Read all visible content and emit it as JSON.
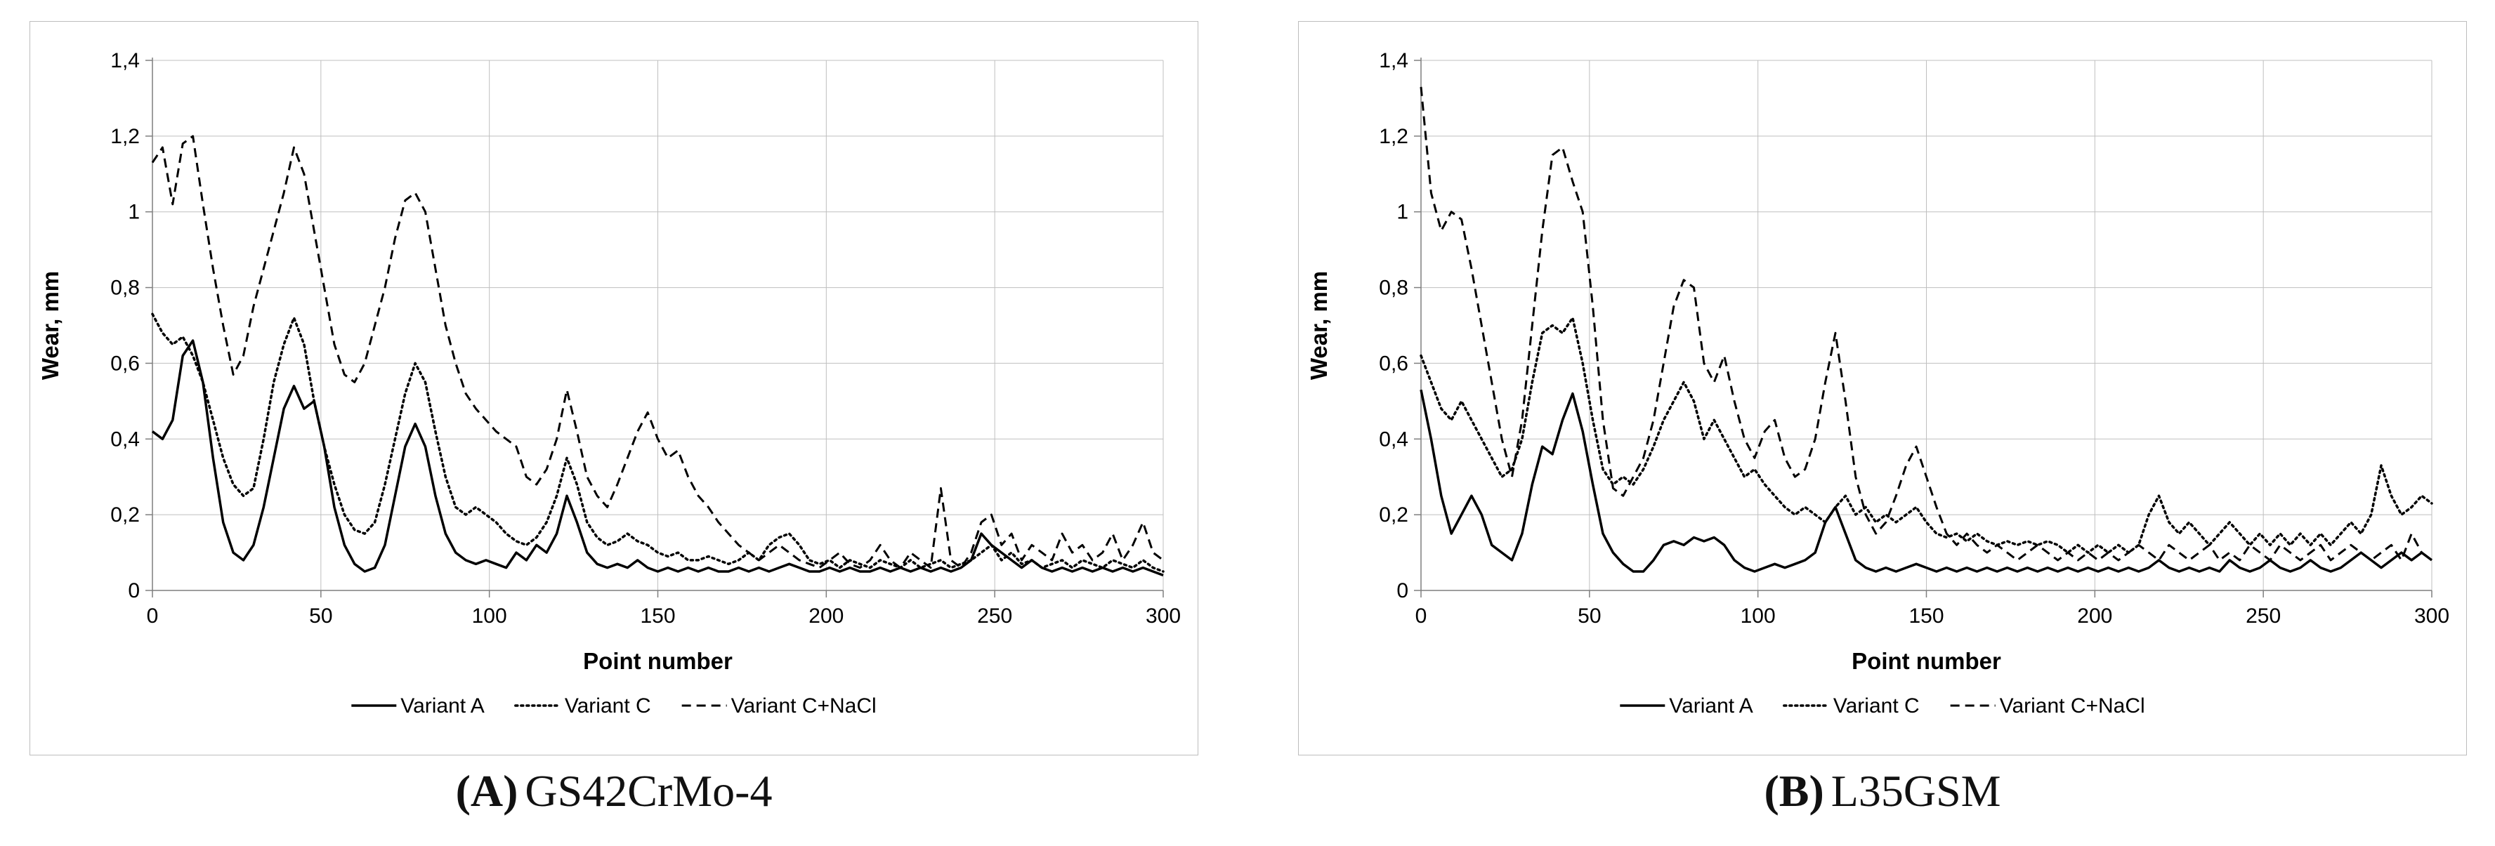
{
  "figure": {
    "captions": [
      {
        "marker": "(A)",
        "label": "GS42CrMo-4"
      },
      {
        "marker": "(B)",
        "label": "L35GSM"
      }
    ]
  },
  "chart_data": [
    {
      "type": "line",
      "title": "",
      "xlabel": "Point number",
      "ylabel": "Wear, mm",
      "xlim": [
        0,
        300
      ],
      "ylim": [
        0,
        1.4
      ],
      "xticks": [
        0,
        50,
        100,
        150,
        200,
        250,
        300
      ],
      "yticks": [
        0,
        0.2,
        0.4,
        0.6,
        0.8,
        1,
        1.2,
        1.4
      ],
      "ytick_labels": [
        "0",
        "0,2",
        "0,4",
        "0,6",
        "0,8",
        "1",
        "1,2",
        "1,4"
      ],
      "grid": true,
      "grid_color": "#bfbfbf",
      "axis_color": "#7f7f7f",
      "legend_position": "bottom",
      "x": [
        0,
        3,
        6,
        9,
        12,
        15,
        18,
        21,
        24,
        27,
        30,
        33,
        36,
        39,
        42,
        45,
        48,
        51,
        54,
        57,
        60,
        63,
        66,
        69,
        72,
        75,
        78,
        81,
        84,
        87,
        90,
        93,
        96,
        99,
        102,
        105,
        108,
        111,
        114,
        117,
        120,
        123,
        126,
        129,
        132,
        135,
        138,
        141,
        144,
        147,
        150,
        153,
        156,
        159,
        162,
        165,
        168,
        171,
        174,
        177,
        180,
        183,
        186,
        189,
        192,
        195,
        198,
        201,
        204,
        207,
        210,
        213,
        216,
        219,
        222,
        225,
        228,
        231,
        234,
        237,
        240,
        243,
        246,
        249,
        252,
        255,
        258,
        261,
        264,
        267,
        270,
        273,
        276,
        279,
        282,
        285,
        288,
        291,
        294,
        297,
        300
      ],
      "series": [
        {
          "name": "Variant A",
          "style": "solid",
          "color": "#000000",
          "values": [
            0.42,
            0.4,
            0.45,
            0.62,
            0.66,
            0.55,
            0.35,
            0.18,
            0.1,
            0.08,
            0.12,
            0.22,
            0.35,
            0.48,
            0.54,
            0.48,
            0.5,
            0.38,
            0.22,
            0.12,
            0.07,
            0.05,
            0.06,
            0.12,
            0.25,
            0.38,
            0.44,
            0.38,
            0.25,
            0.15,
            0.1,
            0.08,
            0.07,
            0.08,
            0.07,
            0.06,
            0.1,
            0.08,
            0.12,
            0.1,
            0.15,
            0.25,
            0.18,
            0.1,
            0.07,
            0.06,
            0.07,
            0.06,
            0.08,
            0.06,
            0.05,
            0.06,
            0.05,
            0.06,
            0.05,
            0.06,
            0.05,
            0.05,
            0.06,
            0.05,
            0.06,
            0.05,
            0.06,
            0.07,
            0.06,
            0.05,
            0.05,
            0.06,
            0.05,
            0.06,
            0.05,
            0.05,
            0.06,
            0.05,
            0.06,
            0.05,
            0.06,
            0.05,
            0.06,
            0.05,
            0.06,
            0.08,
            0.15,
            0.12,
            0.1,
            0.08,
            0.06,
            0.08,
            0.06,
            0.05,
            0.06,
            0.05,
            0.06,
            0.05,
            0.06,
            0.05,
            0.06,
            0.05,
            0.06,
            0.05,
            0.04
          ]
        },
        {
          "name": "Variant C",
          "style": "dotted",
          "color": "#000000",
          "values": [
            0.73,
            0.68,
            0.65,
            0.67,
            0.62,
            0.55,
            0.45,
            0.35,
            0.28,
            0.25,
            0.27,
            0.4,
            0.55,
            0.65,
            0.72,
            0.65,
            0.5,
            0.38,
            0.28,
            0.2,
            0.16,
            0.15,
            0.18,
            0.28,
            0.4,
            0.52,
            0.6,
            0.55,
            0.42,
            0.3,
            0.22,
            0.2,
            0.22,
            0.2,
            0.18,
            0.15,
            0.13,
            0.12,
            0.14,
            0.18,
            0.25,
            0.35,
            0.28,
            0.18,
            0.14,
            0.12,
            0.13,
            0.15,
            0.13,
            0.12,
            0.1,
            0.09,
            0.1,
            0.08,
            0.08,
            0.09,
            0.08,
            0.07,
            0.08,
            0.1,
            0.08,
            0.12,
            0.14,
            0.15,
            0.12,
            0.08,
            0.07,
            0.08,
            0.06,
            0.08,
            0.07,
            0.06,
            0.08,
            0.07,
            0.06,
            0.08,
            0.06,
            0.07,
            0.08,
            0.06,
            0.07,
            0.08,
            0.1,
            0.12,
            0.08,
            0.1,
            0.07,
            0.08,
            0.06,
            0.07,
            0.08,
            0.06,
            0.08,
            0.07,
            0.06,
            0.08,
            0.07,
            0.06,
            0.08,
            0.06,
            0.05
          ]
        },
        {
          "name": "Variant C+NaCl",
          "style": "dashed",
          "color": "#000000",
          "values": [
            1.13,
            1.17,
            1.02,
            1.18,
            1.2,
            1.02,
            0.85,
            0.7,
            0.57,
            0.62,
            0.75,
            0.85,
            0.95,
            1.05,
            1.17,
            1.1,
            0.95,
            0.8,
            0.65,
            0.57,
            0.55,
            0.6,
            0.7,
            0.8,
            0.93,
            1.03,
            1.05,
            1.0,
            0.85,
            0.7,
            0.6,
            0.52,
            0.48,
            0.45,
            0.42,
            0.4,
            0.38,
            0.3,
            0.28,
            0.32,
            0.4,
            0.53,
            0.42,
            0.3,
            0.25,
            0.22,
            0.28,
            0.35,
            0.42,
            0.47,
            0.4,
            0.35,
            0.37,
            0.3,
            0.25,
            0.22,
            0.18,
            0.15,
            0.12,
            0.1,
            0.08,
            0.1,
            0.12,
            0.1,
            0.08,
            0.07,
            0.06,
            0.08,
            0.1,
            0.07,
            0.06,
            0.08,
            0.12,
            0.08,
            0.06,
            0.1,
            0.08,
            0.06,
            0.27,
            0.08,
            0.06,
            0.1,
            0.18,
            0.2,
            0.12,
            0.15,
            0.08,
            0.12,
            0.1,
            0.08,
            0.15,
            0.1,
            0.12,
            0.08,
            0.1,
            0.15,
            0.08,
            0.12,
            0.18,
            0.1,
            0.08
          ]
        }
      ]
    },
    {
      "type": "line",
      "title": "",
      "xlabel": "Point number",
      "ylabel": "Wear, mm",
      "xlim": [
        0,
        300
      ],
      "ylim": [
        0,
        1.4
      ],
      "xticks": [
        0,
        50,
        100,
        150,
        200,
        250,
        300
      ],
      "yticks": [
        0,
        0.2,
        0.4,
        0.6,
        0.8,
        1,
        1.2,
        1.4
      ],
      "ytick_labels": [
        "0",
        "0,2",
        "0,4",
        "0,6",
        "0,8",
        "1",
        "1,2",
        "1,4"
      ],
      "grid": true,
      "grid_color": "#bfbfbf",
      "axis_color": "#7f7f7f",
      "legend_position": "bottom",
      "x": [
        0,
        3,
        6,
        9,
        12,
        15,
        18,
        21,
        24,
        27,
        30,
        33,
        36,
        39,
        42,
        45,
        48,
        51,
        54,
        57,
        60,
        63,
        66,
        69,
        72,
        75,
        78,
        81,
        84,
        87,
        90,
        93,
        96,
        99,
        102,
        105,
        108,
        111,
        114,
        117,
        120,
        123,
        126,
        129,
        132,
        135,
        138,
        141,
        144,
        147,
        150,
        153,
        156,
        159,
        162,
        165,
        168,
        171,
        174,
        177,
        180,
        183,
        186,
        189,
        192,
        195,
        198,
        201,
        204,
        207,
        210,
        213,
        216,
        219,
        222,
        225,
        228,
        231,
        234,
        237,
        240,
        243,
        246,
        249,
        252,
        255,
        258,
        261,
        264,
        267,
        270,
        273,
        276,
        279,
        282,
        285,
        288,
        291,
        294,
        297,
        300
      ],
      "series": [
        {
          "name": "Variant A",
          "style": "solid",
          "color": "#000000",
          "values": [
            0.53,
            0.4,
            0.25,
            0.15,
            0.2,
            0.25,
            0.2,
            0.12,
            0.1,
            0.08,
            0.15,
            0.28,
            0.38,
            0.36,
            0.45,
            0.52,
            0.42,
            0.28,
            0.15,
            0.1,
            0.07,
            0.05,
            0.05,
            0.08,
            0.12,
            0.13,
            0.12,
            0.14,
            0.13,
            0.14,
            0.12,
            0.08,
            0.06,
            0.05,
            0.06,
            0.07,
            0.06,
            0.07,
            0.08,
            0.1,
            0.18,
            0.22,
            0.15,
            0.08,
            0.06,
            0.05,
            0.06,
            0.05,
            0.06,
            0.07,
            0.06,
            0.05,
            0.06,
            0.05,
            0.06,
            0.05,
            0.06,
            0.05,
            0.06,
            0.05,
            0.06,
            0.05,
            0.06,
            0.05,
            0.06,
            0.05,
            0.06,
            0.05,
            0.06,
            0.05,
            0.06,
            0.05,
            0.06,
            0.08,
            0.06,
            0.05,
            0.06,
            0.05,
            0.06,
            0.05,
            0.08,
            0.06,
            0.05,
            0.06,
            0.08,
            0.06,
            0.05,
            0.06,
            0.08,
            0.06,
            0.05,
            0.06,
            0.08,
            0.1,
            0.08,
            0.06,
            0.08,
            0.1,
            0.08,
            0.1,
            0.08
          ]
        },
        {
          "name": "Variant C",
          "style": "dotted",
          "color": "#000000",
          "values": [
            0.62,
            0.55,
            0.48,
            0.45,
            0.5,
            0.45,
            0.4,
            0.35,
            0.3,
            0.32,
            0.4,
            0.55,
            0.68,
            0.7,
            0.68,
            0.72,
            0.6,
            0.45,
            0.32,
            0.28,
            0.3,
            0.28,
            0.32,
            0.38,
            0.45,
            0.5,
            0.55,
            0.5,
            0.4,
            0.45,
            0.4,
            0.35,
            0.3,
            0.32,
            0.28,
            0.25,
            0.22,
            0.2,
            0.22,
            0.2,
            0.18,
            0.22,
            0.25,
            0.2,
            0.22,
            0.18,
            0.2,
            0.18,
            0.2,
            0.22,
            0.18,
            0.15,
            0.14,
            0.15,
            0.13,
            0.15,
            0.13,
            0.12,
            0.13,
            0.12,
            0.13,
            0.12,
            0.13,
            0.12,
            0.1,
            0.12,
            0.1,
            0.12,
            0.1,
            0.12,
            0.1,
            0.12,
            0.2,
            0.25,
            0.18,
            0.15,
            0.18,
            0.15,
            0.12,
            0.15,
            0.18,
            0.15,
            0.12,
            0.15,
            0.12,
            0.15,
            0.12,
            0.15,
            0.12,
            0.15,
            0.12,
            0.15,
            0.18,
            0.15,
            0.2,
            0.33,
            0.25,
            0.2,
            0.22,
            0.25,
            0.23
          ]
        },
        {
          "name": "Variant C+NaCl",
          "style": "dashed",
          "color": "#000000",
          "values": [
            1.33,
            1.05,
            0.95,
            1.0,
            0.98,
            0.85,
            0.7,
            0.55,
            0.4,
            0.3,
            0.45,
            0.7,
            0.95,
            1.15,
            1.17,
            1.08,
            1.0,
            0.75,
            0.45,
            0.27,
            0.25,
            0.3,
            0.35,
            0.45,
            0.6,
            0.75,
            0.82,
            0.8,
            0.6,
            0.55,
            0.62,
            0.5,
            0.4,
            0.35,
            0.42,
            0.45,
            0.35,
            0.3,
            0.32,
            0.4,
            0.55,
            0.68,
            0.5,
            0.3,
            0.2,
            0.15,
            0.18,
            0.25,
            0.33,
            0.38,
            0.3,
            0.22,
            0.15,
            0.12,
            0.15,
            0.12,
            0.1,
            0.12,
            0.1,
            0.08,
            0.1,
            0.12,
            0.1,
            0.08,
            0.1,
            0.08,
            0.1,
            0.08,
            0.1,
            0.08,
            0.1,
            0.12,
            0.1,
            0.08,
            0.12,
            0.1,
            0.08,
            0.1,
            0.12,
            0.08,
            0.1,
            0.08,
            0.12,
            0.1,
            0.08,
            0.12,
            0.1,
            0.08,
            0.1,
            0.12,
            0.08,
            0.1,
            0.12,
            0.1,
            0.08,
            0.1,
            0.12,
            0.08,
            0.15,
            0.1,
            0.08
          ]
        }
      ]
    }
  ]
}
